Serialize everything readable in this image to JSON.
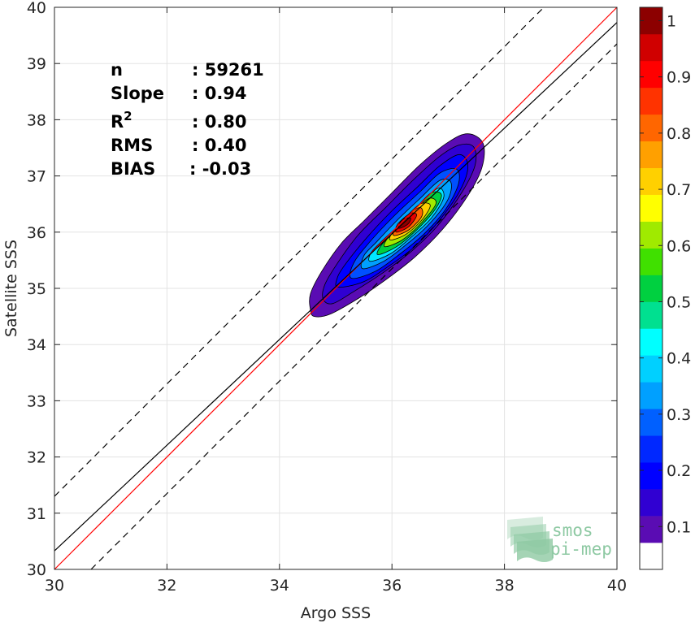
{
  "chart_data": {
    "type": "density-contour",
    "xlabel": "Argo SSS",
    "ylabel": "Satellite SSS",
    "xlim": [
      30,
      40
    ],
    "ylim": [
      30,
      40
    ],
    "xticks": [
      "30",
      "32",
      "34",
      "36",
      "38",
      "40"
    ],
    "yticks": [
      "30",
      "31",
      "32",
      "33",
      "34",
      "35",
      "36",
      "37",
      "38",
      "39",
      "40"
    ],
    "grid": true,
    "stats": [
      {
        "label": "n",
        "value": ": 59261"
      },
      {
        "label": "Slope",
        "value": ": 0.94"
      },
      {
        "label": "R",
        "sup": "2",
        "value": ": 0.80"
      },
      {
        "label": "RMS",
        "value": ": 0.40"
      },
      {
        "label": "BIAS",
        "value": ": -0.03"
      }
    ],
    "density_center": [
      36.15,
      36.15
    ],
    "lines": [
      {
        "kind": "identity",
        "color": "#ff0000",
        "style": "solid",
        "slope": 1.0,
        "intercept": 0.0
      },
      {
        "kind": "regression",
        "color": "#000000",
        "style": "solid",
        "slope": 0.94,
        "intercept": 2.13
      },
      {
        "kind": "upper-bound",
        "color": "#000000",
        "style": "dashed",
        "slope": 1.0,
        "intercept": 1.3
      },
      {
        "kind": "lower-bound",
        "color": "#000000",
        "style": "dashed",
        "slope": 1.0,
        "intercept": -0.65
      }
    ],
    "contour_levels": [
      {
        "level": 0.05,
        "color": "#5a0cb3",
        "points": [
          [
            34.55,
            34.62
          ],
          [
            34.62,
            34.5
          ],
          [
            34.9,
            34.54
          ],
          [
            35.4,
            34.82
          ],
          [
            35.9,
            35.16
          ],
          [
            36.4,
            35.55
          ],
          [
            36.9,
            36.05
          ],
          [
            37.35,
            36.65
          ],
          [
            37.6,
            37.15
          ],
          [
            37.62,
            37.58
          ],
          [
            37.35,
            37.75
          ],
          [
            37.0,
            37.6
          ],
          [
            36.5,
            37.2
          ],
          [
            36.0,
            36.7
          ],
          [
            35.5,
            36.2
          ],
          [
            35.1,
            35.8
          ],
          [
            34.75,
            35.3
          ],
          [
            34.55,
            34.9
          ]
        ]
      },
      {
        "level": 0.1,
        "color": "#3000d2",
        "points": [
          [
            34.78,
            34.8
          ],
          [
            34.95,
            34.73
          ],
          [
            35.3,
            34.93
          ],
          [
            35.8,
            35.25
          ],
          [
            36.3,
            35.62
          ],
          [
            36.8,
            36.1
          ],
          [
            37.25,
            36.72
          ],
          [
            37.48,
            37.2
          ],
          [
            37.45,
            37.52
          ],
          [
            37.2,
            37.55
          ],
          [
            36.85,
            37.35
          ],
          [
            36.4,
            36.95
          ],
          [
            35.9,
            36.45
          ],
          [
            35.4,
            35.95
          ],
          [
            35.0,
            35.4
          ],
          [
            34.8,
            35.05
          ]
        ]
      },
      {
        "level": 0.15,
        "color": "#0000ff",
        "points": [
          [
            35.05,
            35.02
          ],
          [
            35.5,
            35.12
          ],
          [
            35.95,
            35.4
          ],
          [
            36.4,
            35.74
          ],
          [
            36.85,
            36.22
          ],
          [
            37.22,
            36.76
          ],
          [
            37.35,
            37.18
          ],
          [
            37.2,
            37.38
          ],
          [
            36.85,
            37.18
          ],
          [
            36.45,
            36.8
          ],
          [
            36.0,
            36.38
          ],
          [
            35.55,
            35.9
          ],
          [
            35.15,
            35.4
          ],
          [
            35.02,
            35.16
          ]
        ]
      },
      {
        "level": 0.2,
        "color": "#0050ff",
        "points": [
          [
            35.28,
            35.18
          ],
          [
            35.7,
            35.3
          ],
          [
            36.1,
            35.58
          ],
          [
            36.55,
            35.95
          ],
          [
            36.95,
            36.4
          ],
          [
            37.18,
            36.85
          ],
          [
            37.15,
            37.12
          ],
          [
            36.85,
            37.05
          ],
          [
            36.5,
            36.72
          ],
          [
            36.05,
            36.3
          ],
          [
            35.6,
            35.82
          ],
          [
            35.32,
            35.45
          ]
        ]
      },
      {
        "level": 0.3,
        "color": "#00a0ff",
        "points": [
          [
            35.48,
            35.35
          ],
          [
            35.85,
            35.48
          ],
          [
            36.22,
            35.75
          ],
          [
            36.62,
            36.1
          ],
          [
            36.98,
            36.55
          ],
          [
            37.05,
            36.88
          ],
          [
            36.85,
            36.92
          ],
          [
            36.5,
            36.6
          ],
          [
            36.1,
            36.22
          ],
          [
            35.72,
            35.82
          ],
          [
            35.5,
            35.58
          ]
        ]
      },
      {
        "level": 0.4,
        "color": "#00e8ff",
        "points": [
          [
            35.62,
            35.48
          ],
          [
            35.98,
            35.62
          ],
          [
            36.33,
            35.9
          ],
          [
            36.7,
            36.25
          ],
          [
            36.92,
            36.62
          ],
          [
            36.82,
            36.78
          ],
          [
            36.5,
            36.5
          ],
          [
            36.12,
            36.12
          ],
          [
            35.78,
            35.8
          ],
          [
            35.62,
            35.62
          ]
        ]
      },
      {
        "level": 0.5,
        "color": "#00d040",
        "points": [
          [
            35.75,
            35.6
          ],
          [
            36.08,
            35.74
          ],
          [
            36.42,
            36.02
          ],
          [
            36.75,
            36.38
          ],
          [
            36.88,
            36.66
          ],
          [
            36.7,
            36.7
          ],
          [
            36.42,
            36.42
          ],
          [
            36.08,
            36.05
          ],
          [
            35.82,
            35.78
          ]
        ]
      },
      {
        "level": 0.6,
        "color": "#a0ea00",
        "points": [
          [
            35.88,
            35.74
          ],
          [
            36.18,
            35.86
          ],
          [
            36.5,
            36.14
          ],
          [
            36.78,
            36.5
          ],
          [
            36.66,
            36.6
          ],
          [
            36.38,
            36.36
          ],
          [
            36.05,
            36.0
          ],
          [
            35.9,
            35.86
          ]
        ]
      },
      {
        "level": 0.7,
        "color": "#ffd000",
        "points": [
          [
            35.98,
            35.86
          ],
          [
            36.26,
            35.97
          ],
          [
            36.55,
            36.24
          ],
          [
            36.68,
            36.48
          ],
          [
            36.5,
            36.5
          ],
          [
            36.25,
            36.27
          ],
          [
            36.0,
            35.98
          ]
        ]
      },
      {
        "level": 0.8,
        "color": "#ff6600",
        "points": [
          [
            36.04,
            35.94
          ],
          [
            36.3,
            36.04
          ],
          [
            36.53,
            36.28
          ],
          [
            36.5,
            36.44
          ],
          [
            36.28,
            36.3
          ],
          [
            36.06,
            36.06
          ]
        ]
      },
      {
        "level": 0.9,
        "color": "#e80000",
        "points": [
          [
            36.08,
            36.0
          ],
          [
            36.3,
            36.1
          ],
          [
            36.44,
            36.3
          ],
          [
            36.32,
            36.33
          ],
          [
            36.1,
            36.14
          ]
        ]
      },
      {
        "level": 1.0,
        "color": "#8c0000",
        "points": [
          [
            36.12,
            36.07
          ],
          [
            36.28,
            36.14
          ],
          [
            36.33,
            36.25
          ],
          [
            36.18,
            36.22
          ]
        ]
      }
    ],
    "colorbar": {
      "ticks": [
        "0.1",
        "0.2",
        "0.3",
        "0.4",
        "0.5",
        "0.6",
        "0.7",
        "0.8",
        "0.9",
        "1"
      ],
      "tick_values": [
        0.1,
        0.2,
        0.3,
        0.4,
        0.5,
        0.6,
        0.7,
        0.8,
        0.9,
        1.0
      ],
      "min": 0,
      "max": 1,
      "segments": [
        {
          "from": 0.0,
          "to": 0.05,
          "color": "#ffffff"
        },
        {
          "from": 0.05,
          "to": 0.1,
          "color": "#5a0cb3"
        },
        {
          "from": 0.1,
          "to": 0.15,
          "color": "#3000d2"
        },
        {
          "from": 0.15,
          "to": 0.2,
          "color": "#0000ff"
        },
        {
          "from": 0.2,
          "to": 0.25,
          "color": "#0028ff"
        },
        {
          "from": 0.25,
          "to": 0.3,
          "color": "#0060ff"
        },
        {
          "from": 0.3,
          "to": 0.35,
          "color": "#00a0ff"
        },
        {
          "from": 0.35,
          "to": 0.4,
          "color": "#00d0ff"
        },
        {
          "from": 0.4,
          "to": 0.45,
          "color": "#00ffff"
        },
        {
          "from": 0.45,
          "to": 0.5,
          "color": "#00e090"
        },
        {
          "from": 0.5,
          "to": 0.55,
          "color": "#00d040"
        },
        {
          "from": 0.55,
          "to": 0.6,
          "color": "#40e000"
        },
        {
          "from": 0.6,
          "to": 0.65,
          "color": "#a0ea00"
        },
        {
          "from": 0.65,
          "to": 0.7,
          "color": "#ffff00"
        },
        {
          "from": 0.7,
          "to": 0.75,
          "color": "#ffd000"
        },
        {
          "from": 0.75,
          "to": 0.8,
          "color": "#ffa000"
        },
        {
          "from": 0.8,
          "to": 0.85,
          "color": "#ff6600"
        },
        {
          "from": 0.85,
          "to": 0.9,
          "color": "#ff3300"
        },
        {
          "from": 0.9,
          "to": 0.95,
          "color": "#ff0000"
        },
        {
          "from": 0.95,
          "to": 1.0,
          "color": "#d00000"
        },
        {
          "from": 1.0,
          "to": 1.05,
          "color": "#8c0000"
        }
      ]
    }
  },
  "logo": {
    "line1": "smos",
    "line2": "pi-mep",
    "color": "#8ec9a3"
  }
}
